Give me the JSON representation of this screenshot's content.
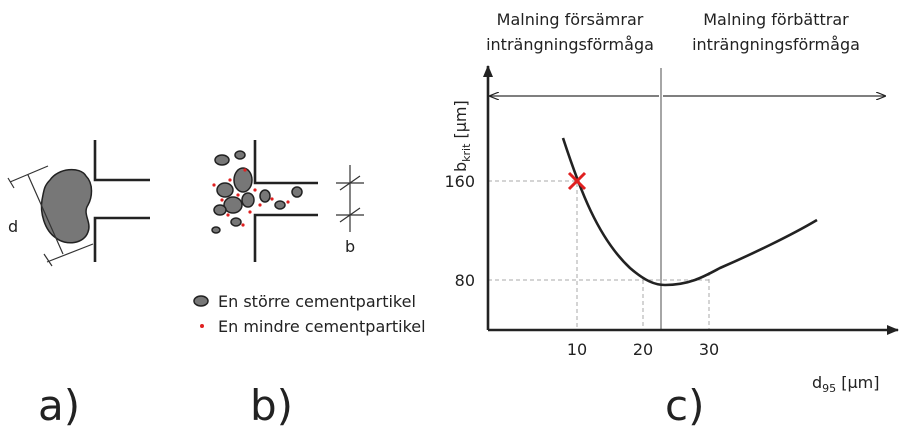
{
  "panel_labels": [
    "a)",
    "b)",
    "c)"
  ],
  "panel_a": {
    "dimension_label": "d"
  },
  "panel_b": {
    "dimension_label": "b",
    "legend": [
      "En större cementpartikel",
      "En mindre cementpartikel"
    ]
  },
  "panel_c": {
    "regions": [
      {
        "line1": "Malning försämrar",
        "line2": "inträngningsförmåga"
      },
      {
        "line1": "Malning förbättrar",
        "line2": "inträngningsförmåga"
      }
    ],
    "y_axis_label": {
      "main": "b",
      "subscript": "krit",
      "unit": " [µm]"
    },
    "x_axis_label": {
      "main": "d",
      "subscript": "95",
      "unit": " [µm]"
    },
    "y_tick_labels": [
      "160",
      "80"
    ],
    "x_tick_labels": [
      "10",
      "20",
      "30"
    ]
  }
}
